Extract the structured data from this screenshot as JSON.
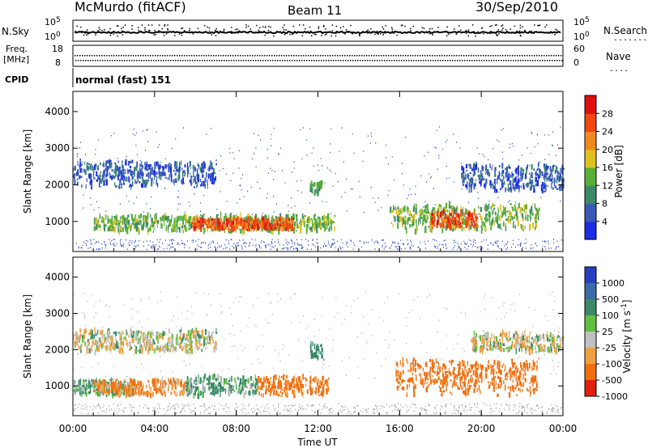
{
  "header": {
    "station": "McMurdo (fitACF)",
    "beam": "Beam 11",
    "date": "30/Sep/2010"
  },
  "top_panels": {
    "nsky_label": "N.Sky",
    "nsky_ticks": [
      "10^5",
      "10^0"
    ],
    "nsearch_label": "N.Search",
    "nsearch_ticks": [
      "10^5",
      "10^0"
    ],
    "freq_label_1": "Freq.",
    "freq_label_2": "[MHz]",
    "freq_ticks": [
      "18",
      "8"
    ],
    "nave_label": "Nave",
    "nave_ticks": [
      "60",
      "0"
    ],
    "cpid_label": "CPID",
    "cpid_value": "normal (fast) 151"
  },
  "chart_data": [
    {
      "type": "heatmap",
      "name": "power",
      "xlabel": "Time UT",
      "ylabel": "Slant Range [km]",
      "xlim": [
        0,
        24
      ],
      "ylim": [
        180,
        4550
      ],
      "x_ticks": [
        "00:00",
        "04:00",
        "08:00",
        "12:00",
        "16:00",
        "20:00",
        "00:00"
      ],
      "y_ticks": [
        "1000",
        "2000",
        "3000",
        "4000"
      ],
      "colorbar_label": "Power [dB]",
      "colorbar_ticks": [
        "4",
        "8",
        "12",
        "16",
        "20",
        "24",
        "28"
      ],
      "colorbar_colors": [
        "#1a2ee8",
        "#3a5ab8",
        "#3a8a6a",
        "#58b038",
        "#e0c020",
        "#f08a20",
        "#f04810",
        "#e01010"
      ],
      "features": [
        {
          "t_start": 1.0,
          "t_end": 12.8,
          "range_km": [
            700,
            1200
          ],
          "level_db": 14
        },
        {
          "t_start": 5.8,
          "t_end": 10.8,
          "range_km": [
            750,
            1100
          ],
          "level_db": 26
        },
        {
          "t_start": 15.5,
          "t_end": 22.8,
          "range_km": [
            700,
            1500
          ],
          "level_db": 14
        },
        {
          "t_start": 17.5,
          "t_end": 19.8,
          "range_km": [
            800,
            1300
          ],
          "level_db": 26
        },
        {
          "t_start": 0.0,
          "t_end": 7.0,
          "range_km": [
            1900,
            2700
          ],
          "level_db": 6
        },
        {
          "t_start": 19.0,
          "t_end": 24.0,
          "range_km": [
            1800,
            2600
          ],
          "level_db": 6
        },
        {
          "t_start": 11.6,
          "t_end": 12.2,
          "range_km": [
            1700,
            2100
          ],
          "level_db": 12
        }
      ]
    },
    {
      "type": "heatmap",
      "name": "velocity",
      "xlabel": "Time UT",
      "ylabel": "Slant Range [km]",
      "xlim": [
        0,
        24
      ],
      "ylim": [
        180,
        4550
      ],
      "x_ticks": [
        "00:00",
        "04:00",
        "08:00",
        "12:00",
        "16:00",
        "20:00",
        "00:00"
      ],
      "y_ticks": [
        "1000",
        "2000",
        "3000",
        "4000"
      ],
      "colorbar_label": "Velocity [m s-1]",
      "colorbar_ticks": [
        "1000",
        "500",
        "100",
        "25",
        "-25",
        "-100",
        "-500",
        "-1000"
      ],
      "colorbar_colors": [
        "#2840c0",
        "#3a6aa8",
        "#3a8a6a",
        "#60c040",
        "#c0c0c0",
        "#f0a040",
        "#f07010",
        "#e02010"
      ],
      "features": [
        {
          "t_start": 0.0,
          "t_end": 3.0,
          "range_km": [
            700,
            1200
          ],
          "velocity": 80
        },
        {
          "t_start": 1.0,
          "t_end": 5.5,
          "range_km": [
            700,
            1200
          ],
          "velocity": -100
        },
        {
          "t_start": 5.5,
          "t_end": 9.0,
          "range_km": [
            700,
            1300
          ],
          "velocity": 80
        },
        {
          "t_start": 9.0,
          "t_end": 12.5,
          "range_km": [
            700,
            1300
          ],
          "velocity": -150
        },
        {
          "t_start": 15.8,
          "t_end": 22.8,
          "range_km": [
            700,
            1800
          ],
          "velocity": -250
        },
        {
          "t_start": 0.0,
          "t_end": 7.0,
          "range_km": [
            1900,
            2600
          ],
          "velocity": 0
        },
        {
          "t_start": 19.5,
          "t_end": 24.0,
          "range_km": [
            1900,
            2500
          ],
          "velocity": 0
        },
        {
          "t_start": 11.6,
          "t_end": 12.3,
          "range_km": [
            1700,
            2200
          ],
          "velocity": 200
        }
      ]
    }
  ]
}
